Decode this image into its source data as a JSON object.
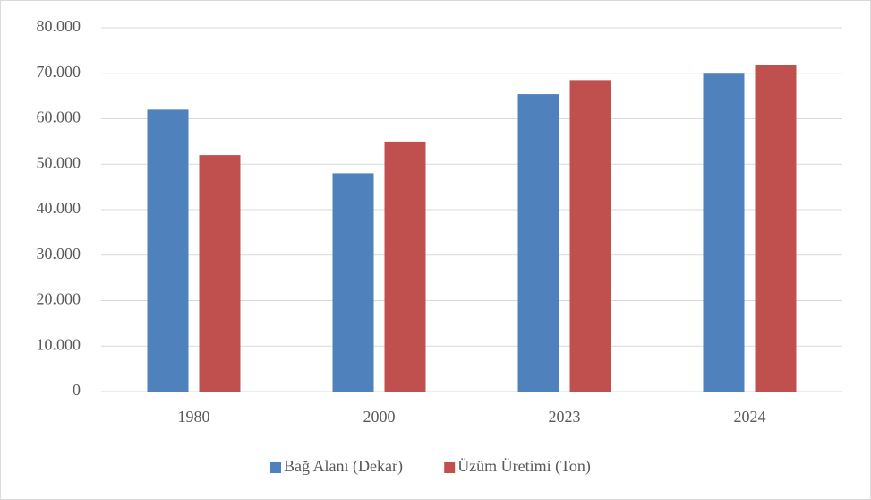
{
  "chart_data": {
    "type": "bar",
    "categories": [
      "1980",
      "2000",
      "2023",
      "2024"
    ],
    "series": [
      {
        "name": "Bağ Alanı (Dekar)",
        "color": "#4f81bd",
        "values": [
          62000,
          48000,
          65400,
          69900
        ]
      },
      {
        "name": "Üzüm Üretimi (Ton)",
        "color": "#c0504d",
        "values": [
          52000,
          55000,
          68500,
          71900
        ]
      }
    ],
    "ylim": [
      0,
      80000
    ],
    "yticks": [
      0,
      {
        "value": 10000,
        "label": "10.000"
      },
      {
        "value": 20000,
        "label": "20.000"
      },
      {
        "value": 30000,
        "label": "30.000"
      },
      {
        "value": 40000,
        "label": "40.000"
      },
      {
        "value": 50000,
        "label": "50.000"
      },
      {
        "value": 60000,
        "label": "60.000"
      },
      {
        "value": 70000,
        "label": "70.000"
      },
      {
        "value": 80000,
        "label": "80.000"
      }
    ],
    "grid": true,
    "legend": "bottom"
  }
}
